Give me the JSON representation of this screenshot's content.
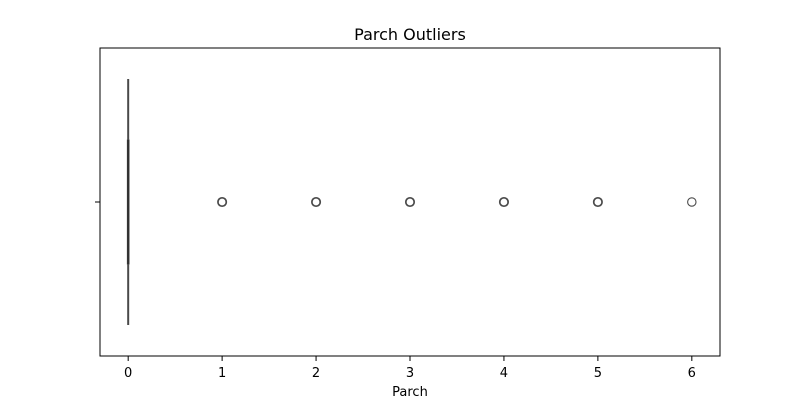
{
  "chart_data": {
    "type": "boxplot",
    "title": "Parch Outliers",
    "xlabel": "Parch",
    "ylabel": "",
    "orientation": "horizontal",
    "xlim": [
      -0.3,
      6.3
    ],
    "x_ticks": [
      0,
      1,
      2,
      3,
      4,
      5,
      6
    ],
    "x_tick_labels": [
      "0",
      "1",
      "2",
      "3",
      "4",
      "5",
      "6"
    ],
    "y_ticks": [
      ""
    ],
    "grid": false,
    "series": [
      {
        "min": 0,
        "q1": 0,
        "median": 0,
        "q3": 0,
        "max": 0,
        "outliers": [
          1,
          2,
          3,
          4,
          5,
          6
        ]
      }
    ]
  }
}
